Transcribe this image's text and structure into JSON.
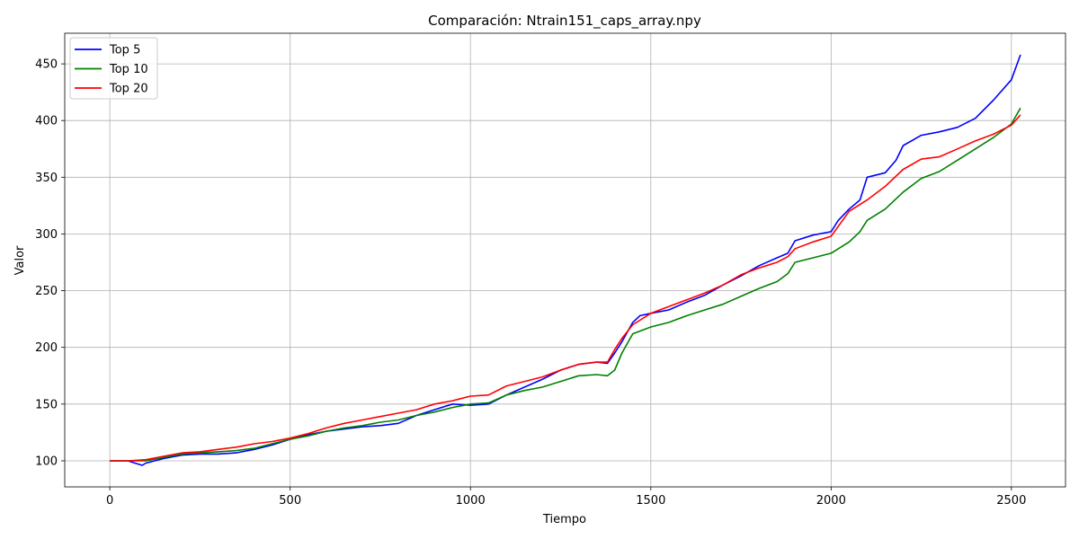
{
  "chart_data": {
    "type": "line",
    "title": "Comparación: Ntrain151_caps_array.npy",
    "xlabel": "Tiempo",
    "ylabel": "Valor",
    "xlim": [
      -125,
      2650
    ],
    "ylim": [
      77,
      477
    ],
    "xticks": [
      0,
      500,
      1000,
      1500,
      2000,
      2500
    ],
    "yticks": [
      100,
      150,
      200,
      250,
      300,
      350,
      400,
      450
    ],
    "grid": true,
    "legend_position": "upper-left",
    "series": [
      {
        "name": "Top 5",
        "color": "#0000ff",
        "x": [
          0,
          50,
          90,
          100,
          150,
          200,
          250,
          300,
          350,
          400,
          450,
          500,
          550,
          600,
          650,
          700,
          750,
          800,
          850,
          900,
          950,
          1000,
          1050,
          1100,
          1150,
          1200,
          1250,
          1300,
          1350,
          1380,
          1400,
          1420,
          1450,
          1470,
          1500,
          1550,
          1600,
          1650,
          1700,
          1750,
          1800,
          1850,
          1880,
          1900,
          1950,
          2000,
          2020,
          2050,
          2080,
          2100,
          2150,
          2180,
          2200,
          2250,
          2300,
          2350,
          2400,
          2450,
          2500,
          2525
        ],
        "y": [
          100,
          100,
          96,
          98,
          102,
          105,
          106,
          106,
          107,
          110,
          114,
          119,
          123,
          126,
          128,
          130,
          131,
          133,
          140,
          145,
          150,
          149,
          150,
          158,
          165,
          172,
          180,
          185,
          187,
          186,
          195,
          205,
          222,
          228,
          230,
          233,
          240,
          246,
          255,
          263,
          272,
          279,
          283,
          294,
          299,
          302,
          312,
          322,
          330,
          350,
          354,
          365,
          378,
          387,
          390,
          394,
          402,
          418,
          436,
          458
        ]
      },
      {
        "name": "Top 10",
        "color": "#008000",
        "x": [
          0,
          50,
          100,
          150,
          200,
          250,
          300,
          350,
          400,
          450,
          500,
          550,
          600,
          650,
          700,
          750,
          800,
          850,
          900,
          950,
          1000,
          1050,
          1100,
          1150,
          1200,
          1250,
          1300,
          1350,
          1380,
          1400,
          1420,
          1450,
          1500,
          1550,
          1600,
          1650,
          1700,
          1750,
          1800,
          1850,
          1880,
          1900,
          1950,
          2000,
          2050,
          2080,
          2100,
          2150,
          2200,
          2250,
          2300,
          2350,
          2400,
          2450,
          2500,
          2525
        ],
        "y": [
          100,
          100,
          100,
          103,
          106,
          107,
          108,
          109,
          111,
          115,
          119,
          122,
          126,
          129,
          131,
          134,
          136,
          140,
          143,
          147,
          150,
          151,
          158,
          162,
          165,
          170,
          175,
          176,
          175,
          180,
          195,
          212,
          218,
          222,
          228,
          233,
          238,
          245,
          252,
          258,
          265,
          275,
          279,
          283,
          293,
          302,
          312,
          322,
          337,
          349,
          355,
          365,
          375,
          385,
          397,
          411
        ]
      },
      {
        "name": "Top 20",
        "color": "#ff0000",
        "x": [
          0,
          50,
          100,
          150,
          200,
          250,
          300,
          350,
          400,
          450,
          500,
          550,
          600,
          650,
          700,
          750,
          800,
          850,
          900,
          950,
          1000,
          1050,
          1100,
          1150,
          1200,
          1250,
          1300,
          1350,
          1380,
          1400,
          1420,
          1450,
          1500,
          1550,
          1600,
          1650,
          1700,
          1750,
          1800,
          1850,
          1880,
          1900,
          1950,
          2000,
          2050,
          2100,
          2150,
          2200,
          2250,
          2300,
          2350,
          2400,
          2450,
          2500,
          2525
        ],
        "y": [
          100,
          100,
          101,
          104,
          107,
          108,
          110,
          112,
          115,
          117,
          120,
          124,
          129,
          133,
          136,
          139,
          142,
          145,
          150,
          153,
          157,
          158,
          166,
          170,
          174,
          180,
          185,
          187,
          187,
          198,
          208,
          220,
          230,
          236,
          242,
          248,
          255,
          264,
          270,
          275,
          280,
          287,
          293,
          298,
          320,
          330,
          342,
          357,
          366,
          368,
          375,
          382,
          388,
          396,
          405
        ]
      }
    ]
  }
}
